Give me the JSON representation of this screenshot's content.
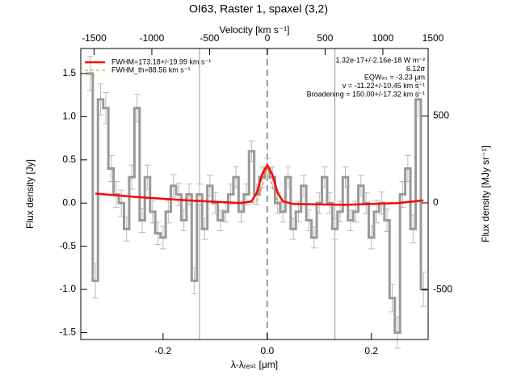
{
  "chart_data": {
    "type": "line",
    "title": "OI63, Raster 1, spaxel (3,2)",
    "xlabel": "λ-λᵣₑₛₜ [μm]",
    "ylabel": "Flux density [Jy]",
    "x2label": "Velocity [km s⁻¹]",
    "y2label": "Flux density [MJy sr⁻¹]",
    "xlim": [
      -0.358,
      0.309
    ],
    "xticks": [
      -0.2,
      {
        "value": 0,
        "label": "0.0"
      },
      0.2
    ],
    "ylim": [
      -1.58,
      1.79
    ],
    "yticks": [
      -1.5,
      {
        "value": -1,
        "label": "-1.0"
      },
      -0.5,
      {
        "value": 0,
        "label": "0.0"
      },
      0.5,
      {
        "value": 1,
        "label": "1.0"
      },
      1.5
    ],
    "x2lim": [
      -1615,
      1392
    ],
    "x2ticks": [
      -1500,
      -1000,
      -500,
      0,
      500,
      1000,
      1500
    ],
    "y2lim": [
      -786,
      888
    ],
    "y2ticks": [
      -500,
      0,
      500
    ],
    "vlines": [
      {
        "x": -0.13,
        "style": "solid"
      },
      {
        "x": 0,
        "style": "dashed"
      },
      {
        "x": 0.13,
        "style": "solid"
      }
    ],
    "spectrum": {
      "color": "#999999",
      "x": [
        -0.34,
        -0.33,
        -0.32,
        -0.31,
        -0.3,
        -0.29,
        -0.28,
        -0.27,
        -0.26,
        -0.25,
        -0.24,
        -0.23,
        -0.22,
        -0.21,
        -0.2,
        -0.19,
        -0.18,
        -0.17,
        -0.16,
        -0.15,
        -0.14,
        -0.13,
        -0.12,
        -0.11,
        -0.1,
        -0.09,
        -0.08,
        -0.07,
        -0.06,
        -0.05,
        -0.04,
        -0.03,
        -0.02,
        -0.01,
        0,
        0.01,
        0.02,
        0.03,
        0.04,
        0.05,
        0.06,
        0.07,
        0.08,
        0.09,
        0.1,
        0.11,
        0.12,
        0.13,
        0.14,
        0.15,
        0.16,
        0.17,
        0.18,
        0.19,
        0.2,
        0.21,
        0.22,
        0.23,
        0.24,
        0.25,
        0.26,
        0.27,
        0.28,
        0.29,
        0.3
      ],
      "values": [
        1.5,
        -0.9,
        1.2,
        1.1,
        0.4,
        0.1,
        0,
        -0.3,
        0.3,
        1.1,
        -0.2,
        0.3,
        -0.1,
        -0.35,
        -0.4,
        -0.1,
        0.2,
        0.1,
        -0.2,
        0.1,
        -0.9,
        0.1,
        -0.3,
        0.2,
        0,
        -0.2,
        -0.1,
        0.1,
        0.3,
        -0.1,
        0.1,
        0.6,
        0.1,
        0.3,
        0.4,
        0.3,
        0,
        -0.1,
        0.3,
        -0.3,
        -0.1,
        0.2,
        -0.2,
        -0.4,
        0,
        0.3,
        0,
        -0.3,
        -0.1,
        0.3,
        -0.2,
        -0.1,
        0.2,
        0,
        -0.4,
        -0.1,
        0,
        -0.2,
        -1.1,
        -1.5,
        0.1,
        0.4,
        -0.3,
        1.2,
        -1
      ],
      "errors": [
        0.2,
        0.2,
        0.18,
        0.18,
        0.15,
        0.15,
        0.15,
        0.14,
        0.14,
        0.16,
        0.14,
        0.14,
        0.13,
        0.13,
        0.13,
        0.13,
        0.13,
        0.13,
        0.12,
        0.12,
        0.15,
        0.12,
        0.12,
        0.12,
        0.12,
        0.12,
        0.12,
        0.12,
        0.12,
        0.12,
        0.12,
        0.12,
        0.12,
        0.12,
        0.12,
        0.12,
        0.12,
        0.12,
        0.12,
        0.12,
        0.12,
        0.12,
        0.12,
        0.12,
        0.12,
        0.12,
        0.12,
        0.12,
        0.12,
        0.12,
        0.12,
        0.12,
        0.12,
        0.12,
        0.13,
        0.13,
        0.13,
        0.13,
        0.16,
        0.18,
        0.15,
        0.15,
        0.16,
        0.2,
        0.2
      ]
    },
    "series": [
      {
        "name": "FWHM=173.18+/-19.99 km s⁻¹",
        "color": "#ff0000",
        "style": "solid",
        "x": [
          -0.33,
          -0.25,
          -0.15,
          -0.05,
          -0.03,
          -0.02,
          -0.01,
          0,
          0.01,
          0.02,
          0.03,
          0.05,
          0.15,
          0.25,
          0.3
        ],
        "values": [
          0.11,
          0.07,
          0.03,
          0,
          0.02,
          0.12,
          0.33,
          0.44,
          0.33,
          0.12,
          0.02,
          -0.01,
          -0.02,
          0,
          0.03
        ]
      },
      {
        "name": "FWHM_th=88.56 km s⁻¹",
        "color": "#e08020",
        "style": "dashed",
        "x": [
          -0.03,
          -0.02,
          -0.01,
          0,
          0.01,
          0.02,
          0.03
        ],
        "values": [
          0,
          0.02,
          0.18,
          0.42,
          0.18,
          0.02,
          0
        ]
      }
    ],
    "annotations": [
      "1.32e-17+/-2.16e-18 W m⁻²",
      "6.12σ",
      "EQWᵢₙₜ = -3.23 μm",
      "v = -11.22+/-10.45 km s⁻¹",
      "Broadening = 150.00+/-17.32 km s⁻¹"
    ]
  }
}
